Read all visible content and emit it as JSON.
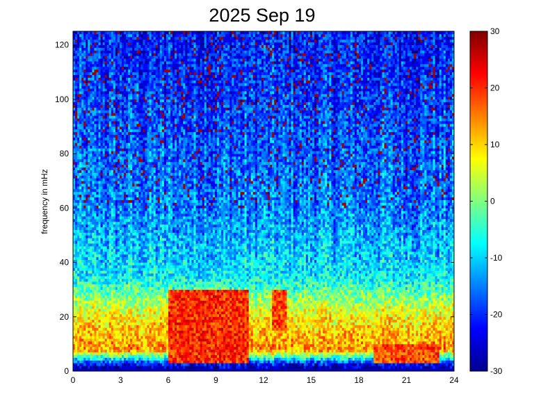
{
  "chart_data": {
    "type": "heatmap",
    "title": "2025 Sep 19",
    "xlabel": "",
    "ylabel": "frequency in mHz",
    "xlim": [
      0,
      24
    ],
    "ylim": [
      0,
      125
    ],
    "x_ticks": [
      "0",
      "3",
      "6",
      "9",
      "12",
      "15",
      "18",
      "21",
      "24"
    ],
    "y_ticks": [
      "0",
      "20",
      "40",
      "60",
      "80",
      "100",
      "120"
    ],
    "colorbar": {
      "range": [
        -30,
        30
      ],
      "ticks": [
        "30",
        "20",
        "10",
        "0",
        "-10",
        "-20",
        "-30"
      ],
      "colormap": "jet"
    },
    "intensity_profile": [
      {
        "freq_mHz": 2,
        "level": -26
      },
      {
        "freq_mHz": 8,
        "level": 14
      },
      {
        "freq_mHz": 20,
        "level": 8
      },
      {
        "freq_mHz": 35,
        "level": -8
      },
      {
        "freq_mHz": 60,
        "level": -15
      },
      {
        "freq_mHz": 100,
        "level": -19
      },
      {
        "freq_mHz": 125,
        "level": -21
      }
    ],
    "hotspots": [
      {
        "hour_from": 6,
        "hour_to": 11,
        "freq_from": 3,
        "freq_to": 30,
        "level": 20
      },
      {
        "hour_from": 12.5,
        "hour_to": 13.5,
        "freq_from": 15,
        "freq_to": 30,
        "level": 18
      },
      {
        "hour_from": 19,
        "hour_to": 23,
        "freq_from": 3,
        "freq_to": 10,
        "level": 18
      }
    ]
  }
}
